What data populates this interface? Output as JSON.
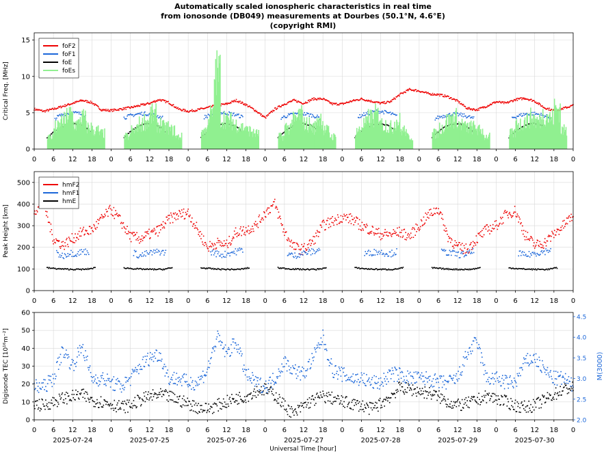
{
  "title": {
    "line1": "Automatically scaled ionospheric characteristics in real time",
    "line2": "from ionosonde (DB049) measurements at Dourbes (50.1°N, 4.6°E)",
    "line3": "(copyright RMI)"
  },
  "xlabel": "Universal Time [hour]",
  "hour_ticks": [
    "0",
    "6",
    "12",
    "18",
    "0",
    "6",
    "12",
    "18",
    "0",
    "6",
    "12",
    "18",
    "0",
    "6",
    "12",
    "18",
    "0",
    "6",
    "12",
    "18",
    "0",
    "6",
    "12",
    "18",
    "0",
    "6",
    "12",
    "18",
    "0"
  ],
  "date_labels": [
    "2025-07-24",
    "2025-07-25",
    "2025-07-26",
    "2025-07-27",
    "2025-07-28",
    "2025-07-29",
    "2025-07-30"
  ],
  "colors": {
    "foF2": "#ee0000",
    "foF1": "#1a66d9",
    "foE": "#000000",
    "foEs": "#90f090",
    "hmF2": "#ee0000",
    "hmF1": "#1a66d9",
    "hmE": "#000000",
    "tec": "#000000",
    "m3000": "#1a66d9"
  },
  "chart_data": [
    {
      "type": "line",
      "ylabel": "Critical Freq. [MHz]",
      "ylim": [
        0,
        16
      ],
      "yticks": [
        "0",
        "5",
        "10",
        "15"
      ],
      "legend_position": "top-left",
      "x_unit": "hours since 2025-07-24 00:00 UT",
      "xlim": [
        0,
        168
      ],
      "series": [
        {
          "name": "foF2",
          "x": [
            0,
            3,
            6,
            9,
            12,
            15,
            18,
            21,
            24,
            27,
            30,
            33,
            36,
            39,
            42,
            45,
            48,
            51,
            54,
            57,
            60,
            63,
            66,
            69,
            72,
            75,
            78,
            81,
            84,
            87,
            90,
            93,
            96,
            99,
            102,
            105,
            108,
            111,
            114,
            117,
            120,
            123,
            126,
            129,
            132,
            135,
            138,
            141,
            144,
            147,
            150,
            153,
            156,
            159,
            162,
            165,
            168
          ],
          "values": [
            5.5,
            5.2,
            5.5,
            5.9,
            6.3,
            6.7,
            6.4,
            5.4,
            5.3,
            5.5,
            5.7,
            6.0,
            6.3,
            6.8,
            6.4,
            5.5,
            5.2,
            5.4,
            5.7,
            6.0,
            6.2,
            6.7,
            6.1,
            5.3,
            4.3,
            5.5,
            6.2,
            6.7,
            6.3,
            6.9,
            6.9,
            6.2,
            6.2,
            6.6,
            6.9,
            6.6,
            6.3,
            6.5,
            7.5,
            8.2,
            8.0,
            7.6,
            7.5,
            7.2,
            6.6,
            5.6,
            5.4,
            5.9,
            6.5,
            6.3,
            6.8,
            7.0,
            6.6,
            5.7,
            5.3,
            5.6,
            6.0
          ]
        },
        {
          "name": "foF1",
          "x": [
            6.5,
            8,
            10,
            12,
            14,
            16,
            28,
            30,
            32,
            34,
            36,
            38,
            40,
            53,
            55,
            57,
            59,
            61,
            63,
            65,
            77,
            79,
            81,
            83,
            85,
            87,
            89,
            101,
            103,
            105,
            107,
            109,
            111,
            113,
            125,
            127,
            129,
            131,
            133,
            135,
            137,
            149,
            151,
            153,
            155,
            157,
            159,
            161
          ],
          "values": [
            4.2,
            4.6,
            4.9,
            5.0,
            4.9,
            4.6,
            4.3,
            4.6,
            4.8,
            4.9,
            4.8,
            4.6,
            4.3,
            4.4,
            4.7,
            4.9,
            5.0,
            4.9,
            4.7,
            4.4,
            4.3,
            4.6,
            4.8,
            4.9,
            4.8,
            4.6,
            4.3,
            4.4,
            4.8,
            5.0,
            5.2,
            5.1,
            4.9,
            4.5,
            4.2,
            4.5,
            4.7,
            4.8,
            4.7,
            4.5,
            4.2,
            4.3,
            4.6,
            4.8,
            4.9,
            4.8,
            4.6,
            4.3
          ]
        },
        {
          "name": "foE",
          "x": [
            4,
            6,
            8,
            10,
            12,
            14,
            16,
            18,
            28,
            30,
            32,
            34,
            36,
            38,
            40,
            42,
            52,
            54,
            56,
            58,
            60,
            62,
            64,
            66,
            76,
            78,
            80,
            82,
            84,
            86,
            88,
            90,
            100,
            102,
            104,
            106,
            108,
            110,
            112,
            114,
            124,
            126,
            128,
            130,
            132,
            134,
            136,
            138,
            148,
            150,
            152,
            154,
            156,
            158,
            160,
            162
          ],
          "values": [
            1.5,
            2.3,
            2.9,
            3.3,
            3.5,
            3.4,
            3.0,
            2.2,
            1.6,
            2.4,
            3.0,
            3.4,
            3.5,
            3.3,
            2.8,
            1.8,
            1.6,
            2.4,
            3.0,
            3.4,
            3.5,
            3.3,
            2.8,
            1.8,
            1.6,
            2.4,
            3.0,
            3.4,
            3.5,
            3.3,
            2.8,
            1.8,
            1.6,
            2.4,
            3.0,
            3.4,
            3.5,
            3.3,
            2.8,
            1.8,
            1.6,
            2.4,
            3.0,
            3.4,
            3.5,
            3.3,
            2.8,
            1.8,
            1.6,
            2.4,
            3.0,
            3.4,
            3.5,
            3.3,
            2.8,
            1.8
          ]
        },
        {
          "name": "foEs",
          "x": [
            4,
            6,
            8,
            10,
            12,
            14,
            16,
            18,
            20,
            28,
            30,
            32,
            34,
            36,
            38,
            40,
            42,
            44,
            52,
            54,
            56,
            58,
            60,
            62,
            64,
            66,
            68,
            76,
            78,
            80,
            82,
            84,
            86,
            88,
            90,
            92,
            100,
            102,
            104,
            106,
            108,
            110,
            112,
            114,
            116,
            124,
            126,
            128,
            130,
            132,
            134,
            136,
            138,
            140,
            148,
            150,
            152,
            154,
            156,
            158,
            160,
            162,
            164
          ],
          "values": [
            2.0,
            3.5,
            4.5,
            5.5,
            4.0,
            5.0,
            3.5,
            3.0,
            2.5,
            2.0,
            3.0,
            4.0,
            4.5,
            5.5,
            4.0,
            3.5,
            3.0,
            2.0,
            3.0,
            5.5,
            12.2,
            5.0,
            4.5,
            4.0,
            3.5,
            3.0,
            2.5,
            2.0,
            3.5,
            4.5,
            5.5,
            4.0,
            3.5,
            5.0,
            3.0,
            2.0,
            3.0,
            4.0,
            5.0,
            5.5,
            4.0,
            3.5,
            4.5,
            3.0,
            2.0,
            2.5,
            3.5,
            4.5,
            5.0,
            4.0,
            3.5,
            3.5,
            3.0,
            2.0,
            2.5,
            4.0,
            4.5,
            5.0,
            4.5,
            5.5,
            5.0,
            6.5,
            3.0
          ]
        }
      ]
    },
    {
      "type": "scatter",
      "ylabel": "Peak Height [km]",
      "ylim": [
        0,
        550
      ],
      "yticks": [
        "0",
        "100",
        "200",
        "300",
        "400",
        "500"
      ],
      "legend_position": "top-left",
      "x_unit": "hours since 2025-07-24 00:00 UT",
      "xlim": [
        0,
        168
      ],
      "series": [
        {
          "name": "hmF2",
          "x": [
            0,
            3,
            6,
            9,
            12,
            15,
            18,
            21,
            24,
            27,
            30,
            33,
            36,
            39,
            42,
            45,
            48,
            51,
            54,
            57,
            60,
            63,
            66,
            69,
            72,
            75,
            78,
            81,
            84,
            87,
            90,
            93,
            96,
            99,
            102,
            105,
            108,
            111,
            114,
            117,
            120,
            123,
            126,
            129,
            132,
            135,
            138,
            141,
            144,
            147,
            150,
            153,
            156,
            159,
            162,
            165,
            168
          ],
          "values": [
            370,
            400,
            240,
            210,
            240,
            270,
            280,
            330,
            375,
            320,
            250,
            240,
            260,
            280,
            330,
            350,
            360,
            280,
            200,
            220,
            210,
            270,
            280,
            300,
            360,
            400,
            270,
            200,
            190,
            230,
            300,
            320,
            340,
            330,
            300,
            280,
            260,
            260,
            270,
            250,
            300,
            350,
            380,
            250,
            200,
            190,
            240,
            280,
            300,
            350,
            370,
            260,
            210,
            220,
            260,
            300,
            350
          ]
        },
        {
          "name": "hmF1",
          "x": [
            7,
            9,
            11,
            13,
            15,
            17,
            31,
            33,
            35,
            37,
            39,
            41,
            55,
            57,
            59,
            61,
            63,
            65,
            79,
            81,
            83,
            85,
            87,
            89,
            103,
            105,
            107,
            109,
            111,
            113,
            127,
            129,
            131,
            133,
            135,
            137,
            151,
            153,
            155,
            157,
            159,
            161
          ],
          "values": [
            170,
            160,
            175,
            170,
            180,
            180,
            175,
            160,
            170,
            175,
            180,
            175,
            180,
            170,
            165,
            175,
            180,
            190,
            170,
            160,
            170,
            175,
            180,
            190,
            170,
            175,
            180,
            175,
            170,
            180,
            180,
            175,
            170,
            165,
            170,
            180,
            175,
            160,
            170,
            175,
            180,
            190
          ]
        },
        {
          "name": "hmE",
          "x": [
            4,
            8,
            12,
            16,
            19,
            28,
            32,
            36,
            40,
            43,
            52,
            56,
            60,
            64,
            67,
            76,
            80,
            84,
            88,
            91,
            100,
            104,
            108,
            112,
            115,
            124,
            128,
            132,
            136,
            139,
            148,
            152,
            156,
            160,
            163
          ],
          "values": [
            105,
            100,
            98,
            98,
            105,
            105,
            100,
            98,
            98,
            105,
            105,
            100,
            98,
            98,
            105,
            105,
            100,
            98,
            98,
            105,
            105,
            100,
            98,
            98,
            105,
            105,
            100,
            98,
            98,
            105,
            105,
            100,
            98,
            98,
            105
          ]
        }
      ]
    },
    {
      "type": "scatter",
      "ylabel": "Digisonde TEC [10¹⁶m⁻²]",
      "ylabel_right": "M(3000)",
      "ylim": [
        0,
        60
      ],
      "ylim_right": [
        2.0,
        4.6
      ],
      "yticks": [
        "0",
        "10",
        "20",
        "30",
        "40",
        "50",
        "60"
      ],
      "yticks_right": [
        "2.0",
        "2.5",
        "3.0",
        "3.5",
        "4.0",
        "4.5"
      ],
      "x_unit": "hours since 2025-07-24 00:00 UT",
      "xlim": [
        0,
        168
      ],
      "series": [
        {
          "name": "TEC",
          "axis": "left",
          "x": [
            0,
            3,
            6,
            9,
            12,
            15,
            18,
            21,
            24,
            27,
            30,
            33,
            36,
            39,
            42,
            45,
            48,
            51,
            54,
            57,
            60,
            63,
            66,
            69,
            72,
            75,
            78,
            81,
            84,
            87,
            90,
            93,
            96,
            99,
            102,
            105,
            108,
            111,
            114,
            117,
            120,
            123,
            126,
            129,
            132,
            135,
            138,
            141,
            144,
            147,
            150,
            153,
            156,
            159,
            162,
            165,
            168
          ],
          "values": [
            9,
            8,
            10,
            12,
            13,
            14,
            11,
            10,
            9,
            7,
            8,
            11,
            13,
            14,
            13,
            11,
            9,
            7,
            6,
            8,
            10,
            12,
            13,
            16,
            17,
            14,
            8,
            3,
            8,
            11,
            13,
            12,
            10,
            9,
            8,
            6,
            9,
            13,
            18,
            17,
            16,
            15,
            13,
            10,
            8,
            9,
            11,
            13,
            12,
            10,
            8,
            7,
            8,
            11,
            14,
            17,
            18
          ]
        },
        {
          "name": "M(3000)",
          "axis": "right",
          "x": [
            0,
            3,
            6,
            9,
            12,
            15,
            18,
            21,
            24,
            27,
            30,
            33,
            36,
            39,
            42,
            45,
            48,
            51,
            54,
            57,
            60,
            63,
            66,
            69,
            72,
            75,
            78,
            81,
            84,
            87,
            90,
            93,
            96,
            99,
            102,
            105,
            108,
            111,
            114,
            117,
            120,
            123,
            126,
            129,
            132,
            135,
            138,
            141,
            144,
            147,
            150,
            153,
            156,
            159,
            162,
            165,
            168
          ],
          "values": [
            2.8,
            2.8,
            3.0,
            3.7,
            3.3,
            3.8,
            3.0,
            3.0,
            2.9,
            2.8,
            3.0,
            3.3,
            3.5,
            3.6,
            3.0,
            3.0,
            2.9,
            2.9,
            3.2,
            4.0,
            3.6,
            3.9,
            3.1,
            2.9,
            2.8,
            3.0,
            3.4,
            3.2,
            3.1,
            3.5,
            4.0,
            3.2,
            3.1,
            3.0,
            3.0,
            2.9,
            2.9,
            3.1,
            3.1,
            3.0,
            3.0,
            3.0,
            2.9,
            2.9,
            3.0,
            3.6,
            3.9,
            3.0,
            3.0,
            2.9,
            2.9,
            3.4,
            3.5,
            3.2,
            3.0,
            3.0,
            2.8
          ]
        }
      ]
    }
  ]
}
